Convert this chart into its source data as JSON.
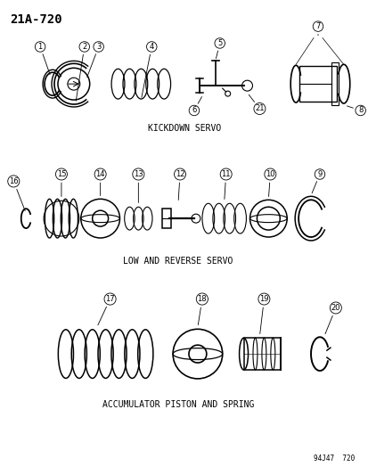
{
  "title": "21A-720",
  "bg_color": "#ffffff",
  "line_color": "#000000",
  "section1_label": "KICKDOWN SERVO",
  "section2_label": "LOW AND REVERSE SERVO",
  "section3_label": "ACCUMULATOR PISTON AND SPRING",
  "footnote": "94J47  720",
  "part_numbers": {
    "s1": [
      1,
      2,
      3,
      4,
      5,
      6,
      21,
      7,
      8
    ],
    "s2": [
      16,
      15,
      14,
      13,
      12,
      11,
      10,
      9
    ],
    "s3": [
      17,
      18,
      19,
      20
    ]
  }
}
